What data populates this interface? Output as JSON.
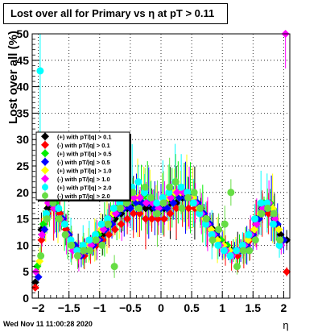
{
  "title": "Lost over all for Primary vs   η at pT > 0.11",
  "footer_timestamp": "Wed Nov 11 11:00:28 2020",
  "chart_data": {
    "type": "scatter",
    "title": "Lost over all for Primary vs   η at pT > 0.11",
    "xlabel": "η",
    "ylabel": "Lost over all (%)",
    "xlim": [
      -2.1,
      2.1
    ],
    "ylim": [
      0,
      50
    ],
    "xticks": [
      -2,
      -1.5,
      -1,
      -0.5,
      0,
      0.5,
      1,
      1.5,
      2
    ],
    "xtick_labels": [
      "−2",
      "−1.5",
      "−1",
      "−0.5",
      "0",
      "0.5",
      "1",
      "1.5",
      "2"
    ],
    "yticks": [
      0,
      5,
      10,
      15,
      20,
      25,
      30,
      35,
      40,
      45,
      50
    ],
    "ytick_labels": [
      "0",
      "5",
      "10",
      "15",
      "20",
      "25",
      "30",
      "35",
      "40",
      "45",
      "50"
    ],
    "grid": true,
    "legend_position": "left-middle",
    "series": [
      {
        "name": "(+) with pT/|q| > 0.1",
        "color": "#000000",
        "marker": "diamond",
        "x": [
          -2.05,
          -1.95,
          -1.85,
          -1.75,
          -1.65,
          -1.55,
          -1.45,
          -1.35,
          -1.25,
          -1.15,
          -1.05,
          -0.95,
          -0.85,
          -0.75,
          -0.65,
          -0.55,
          -0.45,
          -0.35,
          -0.25,
          -0.15,
          -0.05,
          0.05,
          0.15,
          0.25,
          0.35,
          0.45,
          0.55,
          0.65,
          0.75,
          0.85,
          0.95,
          1.05,
          1.15,
          1.25,
          1.35,
          1.45,
          1.55,
          1.65,
          1.75,
          1.85,
          1.95,
          2.05
        ],
        "y": [
          3,
          13,
          17,
          18,
          16,
          13,
          10,
          9,
          9,
          10,
          11,
          12,
          14,
          15,
          16,
          17,
          18,
          18,
          17,
          17,
          16,
          17,
          18,
          18,
          19,
          19,
          18,
          17,
          15,
          13,
          11,
          10,
          9,
          9,
          10,
          12,
          15,
          17,
          17,
          15,
          12,
          11
        ]
      },
      {
        "name": "(-) with pT/|q| > 0.1",
        "color": "#ff0000",
        "marker": "diamond",
        "x": [
          -2.05,
          -1.95,
          -1.85,
          -1.75,
          -1.65,
          -1.55,
          -1.45,
          -1.35,
          -1.25,
          -1.15,
          -1.05,
          -0.95,
          -0.85,
          -0.75,
          -0.65,
          -0.55,
          -0.45,
          -0.35,
          -0.25,
          -0.15,
          -0.05,
          0.05,
          0.15,
          0.25,
          0.35,
          0.45,
          0.55,
          0.65,
          0.75,
          0.85,
          0.95,
          1.05,
          1.15,
          1.25,
          1.35,
          1.45,
          1.55,
          1.65,
          1.75,
          1.85,
          1.95,
          2.05
        ],
        "y": [
          2,
          11,
          16,
          17,
          16,
          13,
          10,
          8,
          8,
          9,
          10,
          11,
          12,
          13,
          14,
          15,
          16,
          16,
          15,
          15,
          15,
          15,
          16,
          17,
          17,
          17,
          17,
          16,
          14,
          12,
          10,
          9,
          8,
          8,
          9,
          11,
          14,
          16,
          16,
          14,
          11,
          5
        ]
      },
      {
        "name": "(+) with pT/|q| > 0.5",
        "color": "#00ee00",
        "marker": "diamond",
        "x": [
          -2.02,
          -1.92,
          -1.82,
          -1.72,
          -1.62,
          -1.52,
          -1.42,
          -1.32,
          -1.22,
          -1.12,
          -1.02,
          -0.92,
          -0.82,
          -0.72,
          -0.62,
          -0.52,
          -0.42,
          -0.32,
          -0.22,
          -0.12,
          -0.02,
          0.08,
          0.18,
          0.28,
          0.38,
          0.48,
          0.58,
          0.68,
          0.78,
          0.88,
          0.98,
          1.08,
          1.18,
          1.28,
          1.38,
          1.48,
          1.58,
          1.68,
          1.78,
          1.88,
          1.98
        ],
        "y": [
          6,
          14,
          19,
          18,
          15,
          12,
          10,
          9,
          9,
          10,
          12,
          13,
          15,
          17,
          17,
          18,
          18,
          19,
          19,
          18,
          17,
          18,
          19,
          20,
          20,
          19,
          18,
          16,
          14,
          12,
          11,
          10,
          9,
          9,
          10,
          12,
          15,
          18,
          18,
          14,
          11
        ]
      },
      {
        "name": "(-) with pT/|q| > 0.5",
        "color": "#0000ff",
        "marker": "diamond",
        "x": [
          -2.0,
          -1.9,
          -1.8,
          -1.7,
          -1.6,
          -1.5,
          -1.4,
          -1.3,
          -1.2,
          -1.1,
          -1.0,
          -0.9,
          -0.8,
          -0.7,
          -0.6,
          -0.5,
          -0.4,
          -0.3,
          -0.2,
          -0.1,
          0.0,
          0.1,
          0.2,
          0.3,
          0.4,
          0.5,
          0.6,
          0.7,
          0.8,
          0.9,
          1.0,
          1.1,
          1.2,
          1.3,
          1.4,
          1.5,
          1.6,
          1.7,
          1.8,
          1.9,
          2.0
        ],
        "y": [
          4,
          13,
          18,
          17,
          15,
          12,
          10,
          8,
          9,
          10,
          11,
          13,
          14,
          16,
          17,
          17,
          18,
          18,
          18,
          17,
          17,
          17,
          18,
          19,
          19,
          19,
          18,
          16,
          14,
          12,
          10,
          9,
          9,
          9,
          10,
          12,
          15,
          17,
          17,
          14,
          11
        ]
      },
      {
        "name": "(+) with pT/|q| > 1.0",
        "color": "#ffff00",
        "marker": "diamond",
        "x": [
          -1.98,
          -1.88,
          -1.78,
          -1.68,
          -1.58,
          -1.48,
          -1.38,
          -1.28,
          -1.18,
          -1.08,
          -0.98,
          -0.88,
          -0.78,
          -0.68,
          -0.58,
          -0.48,
          -0.38,
          -0.28,
          -0.18,
          -0.08,
          0.02,
          0.12,
          0.22,
          0.32,
          0.42,
          0.52,
          0.62,
          0.72,
          0.82,
          0.92,
          1.02,
          1.12,
          1.22,
          1.32,
          1.42,
          1.52,
          1.62,
          1.72,
          1.82,
          1.92
        ],
        "y": [
          7,
          15,
          19,
          17,
          14,
          11,
          9,
          9,
          10,
          11,
          13,
          14,
          16,
          17,
          18,
          19,
          19,
          20,
          19,
          18,
          18,
          19,
          20,
          20,
          20,
          19,
          17,
          15,
          13,
          11,
          10,
          9,
          9,
          10,
          11,
          13,
          16,
          18,
          17,
          13
        ]
      },
      {
        "name": "(-) with pT/|q| > 1.0",
        "color": "#ff00ff",
        "marker": "diamond",
        "x": [
          -2.04,
          -1.94,
          -1.84,
          -1.74,
          -1.64,
          -1.54,
          -1.44,
          -1.34,
          -1.24,
          -1.14,
          -1.04,
          -0.94,
          -0.84,
          -0.74,
          -0.64,
          -0.54,
          -0.44,
          -0.34,
          -0.24,
          -0.14,
          -0.04,
          0.06,
          0.16,
          0.26,
          0.36,
          0.46,
          0.56,
          0.66,
          0.76,
          0.86,
          0.96,
          1.06,
          1.16,
          1.26,
          1.36,
          1.46,
          1.56,
          1.66,
          1.76,
          1.86,
          1.96,
          2.03
        ],
        "y": [
          5,
          12,
          18,
          17,
          15,
          12,
          9,
          8,
          9,
          10,
          11,
          13,
          15,
          16,
          17,
          18,
          19,
          19,
          18,
          18,
          17,
          18,
          19,
          20,
          20,
          19,
          18,
          16,
          14,
          12,
          10,
          9,
          8,
          9,
          10,
          12,
          14,
          17,
          18,
          15,
          10,
          50
        ]
      },
      {
        "name": "(+) with pT/|q| > 2.0",
        "color": "#00ffff",
        "marker": "circle",
        "x": [
          -1.97,
          -1.87,
          -1.77,
          -1.67,
          -1.57,
          -1.47,
          -1.37,
          -1.27,
          -1.17,
          -1.07,
          -0.97,
          -0.87,
          -0.77,
          -0.67,
          -0.57,
          -0.47,
          -0.37,
          -0.27,
          -0.17,
          -0.07,
          0.03,
          0.13,
          0.23,
          0.33,
          0.43,
          0.53,
          0.63,
          0.73,
          0.83,
          0.93,
          1.03,
          1.13,
          1.23,
          1.33,
          1.43,
          1.53,
          1.63,
          1.73,
          1.83,
          1.93
        ],
        "y": [
          43,
          16,
          20,
          17,
          14,
          11,
          9,
          10,
          11,
          12,
          14,
          15,
          17,
          18,
          19,
          21,
          22,
          20,
          19,
          18,
          19,
          20,
          22,
          21,
          20,
          18,
          16,
          14,
          12,
          10,
          9,
          8,
          9,
          10,
          12,
          15,
          18,
          18,
          14,
          10
        ]
      },
      {
        "name": "(-) with pT/|q| > 2.0",
        "color": "#66dd44",
        "marker": "circle",
        "x": [
          -1.96,
          -1.86,
          -1.76,
          -1.66,
          -1.56,
          -1.46,
          -1.36,
          -1.26,
          -1.16,
          -1.06,
          -0.96,
          -0.86,
          -0.76,
          -0.66,
          -0.56,
          -0.46,
          -0.36,
          -0.26,
          -0.16,
          -0.06,
          0.04,
          0.14,
          0.24,
          0.34,
          0.44,
          0.54,
          0.64,
          0.74,
          0.84,
          0.94,
          1.04,
          1.14,
          1.24,
          1.34,
          1.44,
          1.54,
          1.64,
          1.74,
          1.84,
          1.94
        ],
        "y": [
          8,
          15,
          18,
          15,
          12,
          10,
          8,
          9,
          9,
          11,
          10,
          14,
          6,
          17,
          18,
          20,
          17,
          21,
          19,
          16,
          18,
          21,
          22,
          17,
          19,
          20,
          17,
          15,
          11,
          13,
          14,
          20,
          6,
          9,
          9,
          11,
          16,
          17,
          16,
          11
        ]
      }
    ]
  }
}
